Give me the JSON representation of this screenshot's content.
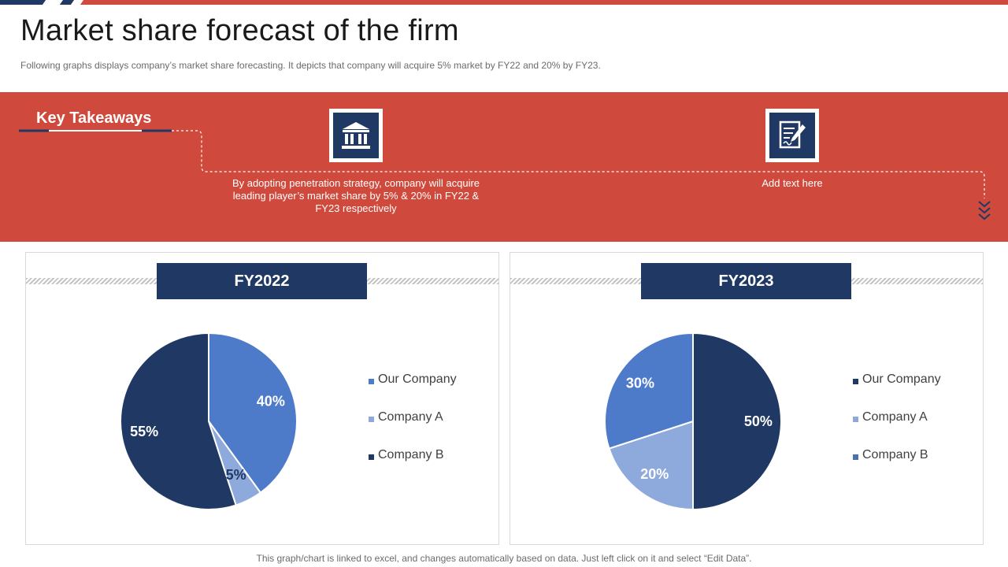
{
  "header": {
    "title": "Market share forecast of the firm",
    "subtitle": "Following graphs displays company’s market share forecasting. It depicts that company will acquire 5% market by FY22  and 20% by FY23."
  },
  "takeaways": {
    "heading": "Key Takeaways",
    "items": [
      {
        "icon": "bank-icon",
        "text": "By adopting penetration strategy, company will acquire leading player’s market share by 5% & 20% in FY22 & FY23 respectively"
      },
      {
        "icon": "document-edit-icon",
        "text": "Add text here"
      }
    ]
  },
  "colors": {
    "accent_red": "#cf4a3c",
    "navy": "#1f3864",
    "medium_blue": "#4e7bc9",
    "light_blue": "#8eaadc",
    "steel_blue": "#4a72b0"
  },
  "chart_data": [
    {
      "type": "pie",
      "title": "FY2022",
      "categories": [
        "Our Company",
        "Company A",
        "Company B"
      ],
      "values": [
        40,
        5,
        55
      ],
      "labels": [
        "40%",
        "5%",
        "55%"
      ],
      "colors": [
        "#4e7bc9",
        "#8eaadc",
        "#1f3864"
      ],
      "legend": "right",
      "legend_colors": [
        "#4e7bc9",
        "#8eaadc",
        "#1f3864"
      ]
    },
    {
      "type": "pie",
      "title": "FY2023",
      "categories": [
        "Our Company",
        "Company A",
        "Company B"
      ],
      "values": [
        50,
        20,
        30
      ],
      "labels": [
        "50%",
        "20%",
        "30%"
      ],
      "colors": [
        "#1f3864",
        "#8eaadc",
        "#4e7bc9"
      ],
      "legend": "right",
      "legend_colors": [
        "#1f3864",
        "#8eaadc",
        "#4a72b0"
      ]
    }
  ],
  "footer": {
    "note": "This graph/chart is linked to excel, and changes automatically based on data. Just left click on it and select “Edit Data”."
  }
}
